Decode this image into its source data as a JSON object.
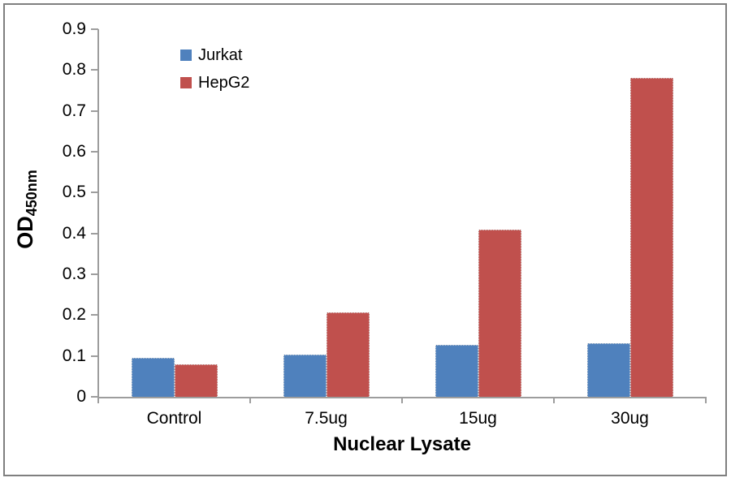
{
  "chart_data": {
    "type": "bar",
    "title": "",
    "categories": [
      "Control",
      "7.5ug",
      "15ug",
      "30ug"
    ],
    "series": [
      {
        "name": "Jurkat",
        "color": "#4F81BD",
        "values": [
          0.095,
          0.103,
          0.127,
          0.132
        ]
      },
      {
        "name": "HepG2",
        "color": "#C0504D",
        "values": [
          0.08,
          0.207,
          0.41,
          0.78
        ]
      }
    ],
    "xlabel": "Nuclear Lysate",
    "ylabel_main": "OD",
    "ylabel_sub": "450nm",
    "ylim": [
      0,
      0.9
    ],
    "ytick_step": 0.1,
    "ytick_labels": [
      "0",
      "0.1",
      "0.2",
      "0.3",
      "0.4",
      "0.5",
      "0.6",
      "0.7",
      "0.8",
      "0.9"
    ],
    "grid": false,
    "legend_position": "upper-left-inside",
    "colors": {
      "axis": "#9d9d9d",
      "frame": "#7f7f7f",
      "background": "#ffffff"
    }
  }
}
